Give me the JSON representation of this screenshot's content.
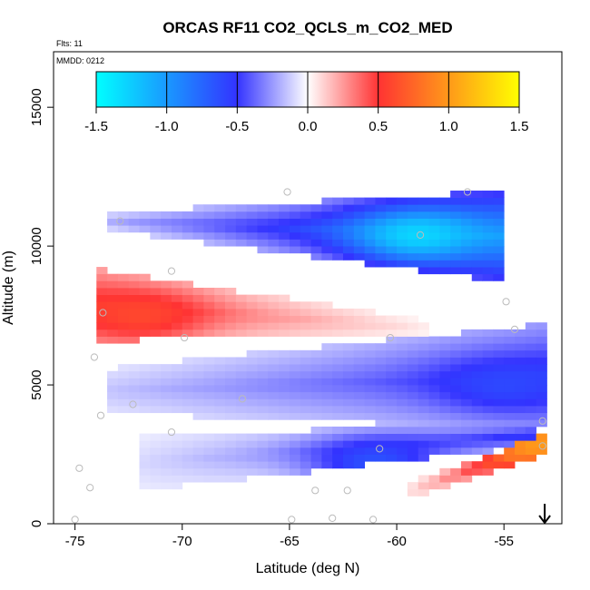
{
  "chart_data": {
    "type": "heatmap",
    "title": "ORCAS RF11 CO2_QCLS_m_CO2_MED",
    "flights_label": "Flts: 11",
    "date_label": "MMDD: 0212",
    "xlabel": "Latitude (deg N)",
    "ylabel": "Altitude (m)",
    "xlim": [
      -76,
      -52.3
    ],
    "ylim": [
      0,
      17000
    ],
    "xticks": [
      -75,
      -70,
      -65,
      -60,
      -55
    ],
    "xtick_labels": [
      "-75",
      "-70",
      "-65",
      "-60",
      "-55"
    ],
    "yticks": [
      0,
      5000,
      10000,
      15000
    ],
    "ytick_labels": [
      "0",
      "5000",
      "10000",
      "15000"
    ],
    "colorbar": {
      "ticks": [
        -1.5,
        -1.0,
        -0.5,
        0.0,
        0.5,
        1.0,
        1.5
      ],
      "tick_labels": [
        "-1.5",
        "-1.0",
        "-0.5",
        "0.0",
        "0.5",
        "1.0",
        "1.5"
      ],
      "range": [
        -1.5,
        1.5
      ]
    },
    "colors": {
      "neg_max": "#00ffff",
      "neg_mid": "#3333ff",
      "zero": "#ffffff",
      "pos_mid": "#ff3333",
      "pos_max": "#ffff00",
      "profile_marker": "#bbbbbb"
    },
    "arrow_latitude": -53.1,
    "bands": [
      {
        "name": "upper-negative-band",
        "lat_start": -73.5,
        "lat_end": -54.8,
        "alt_bottom_start": 10600,
        "alt_top_start": 11200,
        "alt_bottom_end": 8700,
        "alt_top_end": 12000,
        "value_start": -0.2,
        "value_end": -1.0,
        "peak": -1.3,
        "peak_lat": -59,
        "peak_alt": 10400
      },
      {
        "name": "positive-band",
        "lat_start": -74.0,
        "lat_end": -58.5,
        "alt_bottom_start": 6600,
        "alt_top_start": 9200,
        "alt_bottom_end": 6800,
        "alt_top_end": 7300,
        "value_start": 0.5,
        "value_end": 0.05,
        "peak": 0.6,
        "peak_lat": -72,
        "peak_alt": 7500
      },
      {
        "name": "mid-negative-band",
        "lat_start": -73.5,
        "lat_end": -53.1,
        "alt_bottom_start": 4000,
        "alt_top_start": 5600,
        "alt_bottom_end": 3400,
        "alt_top_end": 7200,
        "value_start": -0.15,
        "value_end": -0.55,
        "peak": -0.6,
        "peak_lat": -55,
        "peak_alt": 5000
      },
      {
        "name": "lower-negative-band",
        "lat_start": -72.0,
        "lat_end": -53.5,
        "alt_bottom_start": 1200,
        "alt_top_start": 3200,
        "alt_bottom_end": 2800,
        "alt_top_end": 3600,
        "value_start": -0.1,
        "value_end": -0.55,
        "peak": -0.65,
        "peak_lat": -61,
        "peak_alt": 2200
      },
      {
        "name": "lower-positive-band",
        "lat_start": -59.3,
        "lat_end": -53.1,
        "alt_bottom_start": 900,
        "alt_top_start": 1500,
        "alt_bottom_end": 2500,
        "alt_top_end": 3200,
        "value_start": 0.1,
        "value_end": 0.8,
        "peak": 1.0,
        "peak_lat": -53.3,
        "peak_alt": 2900
      }
    ],
    "profile_points": [
      {
        "lat": -75.0,
        "alt": 150
      },
      {
        "lat": -74.3,
        "alt": 1300
      },
      {
        "lat": -74.8,
        "alt": 2000
      },
      {
        "lat": -73.8,
        "alt": 3900
      },
      {
        "lat": -74.1,
        "alt": 6000
      },
      {
        "lat": -73.7,
        "alt": 7600
      },
      {
        "lat": -72.3,
        "alt": 4300
      },
      {
        "lat": -70.5,
        "alt": 3300
      },
      {
        "lat": -69.9,
        "alt": 6700
      },
      {
        "lat": -70.5,
        "alt": 9100
      },
      {
        "lat": -72.9,
        "alt": 10900
      },
      {
        "lat": -67.2,
        "alt": 4500
      },
      {
        "lat": -65.1,
        "alt": 11950
      },
      {
        "lat": -64.9,
        "alt": 150
      },
      {
        "lat": -63.8,
        "alt": 1200
      },
      {
        "lat": -63.0,
        "alt": 200
      },
      {
        "lat": -62.3,
        "alt": 1200
      },
      {
        "lat": -61.1,
        "alt": 150
      },
      {
        "lat": -60.8,
        "alt": 2700
      },
      {
        "lat": -60.3,
        "alt": 6700
      },
      {
        "lat": -58.9,
        "alt": 10400
      },
      {
        "lat": -56.7,
        "alt": 11950
      },
      {
        "lat": -54.9,
        "alt": 8000
      },
      {
        "lat": -54.5,
        "alt": 7000
      },
      {
        "lat": -53.2,
        "alt": 3700
      },
      {
        "lat": -53.2,
        "alt": 2800
      }
    ]
  }
}
